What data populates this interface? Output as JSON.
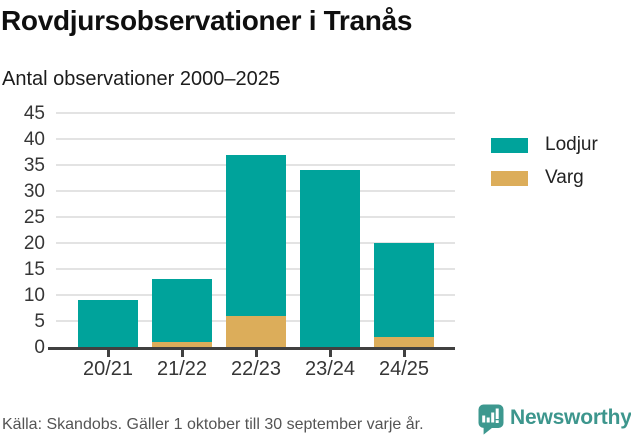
{
  "header": {
    "title": "Rovdjursobservationer i Tranås",
    "subtitle": "Antal observationer 2000–2025"
  },
  "chart_data": {
    "type": "bar",
    "stacked": true,
    "title": "Rovdjursobservationer i Tranås",
    "subtitle": "Antal observationer 2000–2025",
    "categories": [
      "20/21",
      "21/22",
      "22/23",
      "23/24",
      "24/25"
    ],
    "series": [
      {
        "name": "Lodjur",
        "color": "#00A39B",
        "values": [
          9,
          12,
          31,
          34,
          18
        ]
      },
      {
        "name": "Varg",
        "color": "#DCAD5A",
        "values": [
          0,
          1,
          6,
          0,
          2
        ]
      }
    ],
    "stack_order_bottom_to_top": [
      "Varg",
      "Lodjur"
    ],
    "totals": [
      9,
      13,
      37,
      34,
      20
    ],
    "xlabel": "",
    "ylabel": "",
    "ylim": [
      0,
      45
    ],
    "ytick_step": 5,
    "grid": true,
    "legend_position": "right"
  },
  "colors": {
    "lodjur": "#00A39B",
    "varg": "#DCAD5A",
    "gridline": "#E3E3E3",
    "axis": "#404040",
    "brand_teal": "#3D968D"
  },
  "footer": {
    "source": "Källa: Skandobs. Gäller 1 oktober till 30 september varje år.",
    "brand": "Newsworthy"
  }
}
